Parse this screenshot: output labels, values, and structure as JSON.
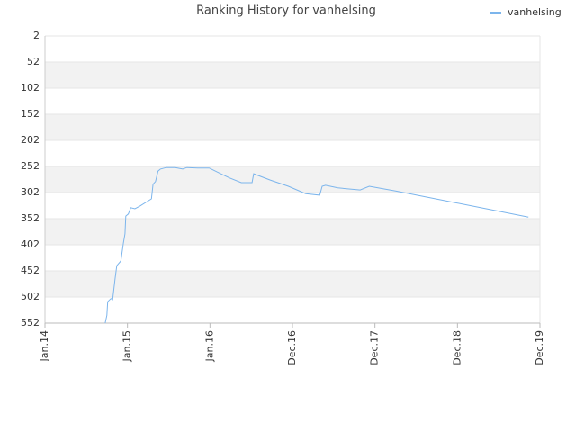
{
  "chart_data": {
    "type": "line",
    "title": "Ranking History for vanhelsing",
    "xlim": [
      0,
      6
    ],
    "xticks": [
      {
        "value": 0,
        "label": "Jan.14"
      },
      {
        "value": 1,
        "label": "Jan.15"
      },
      {
        "value": 2,
        "label": "Jan.16"
      },
      {
        "value": 3,
        "label": "Dec.16"
      },
      {
        "value": 4,
        "label": "Dec.17"
      },
      {
        "value": 5,
        "label": "Dec.18"
      },
      {
        "value": 6,
        "label": "Dec.19"
      }
    ],
    "ylim": [
      552,
      2
    ],
    "yticks": [
      2,
      52,
      102,
      152,
      202,
      252,
      302,
      352,
      402,
      452,
      502,
      552
    ],
    "grid": true,
    "legend": "top-right",
    "series": [
      {
        "name": "vanhelsing",
        "color": "#7cb5ec",
        "x": [
          0.73,
          0.75,
          0.76,
          0.8,
          0.82,
          0.85,
          0.87,
          0.92,
          0.95,
          0.97,
          0.98,
          1.01,
          1.04,
          1.09,
          1.15,
          1.29,
          1.31,
          1.34,
          1.37,
          1.4,
          1.47,
          1.58,
          1.67,
          1.72,
          1.85,
          1.99,
          2.13,
          2.24,
          2.38,
          2.51,
          2.53,
          2.73,
          2.95,
          3.16,
          3.33,
          3.36,
          3.4,
          3.55,
          3.82,
          3.93,
          4.25,
          4.8,
          5.35,
          5.86
        ],
        "values": [
          552,
          537,
          511,
          505,
          507,
          467,
          442,
          433,
          399,
          381,
          347,
          343,
          331,
          333,
          328,
          314,
          286,
          281,
          261,
          257,
          254,
          254,
          257,
          254,
          255,
          255,
          266,
          274,
          283,
          283,
          266,
          278,
          290,
          304,
          307,
          290,
          288,
          293,
          297,
          290,
          299,
          316,
          333,
          349
        ]
      }
    ]
  }
}
